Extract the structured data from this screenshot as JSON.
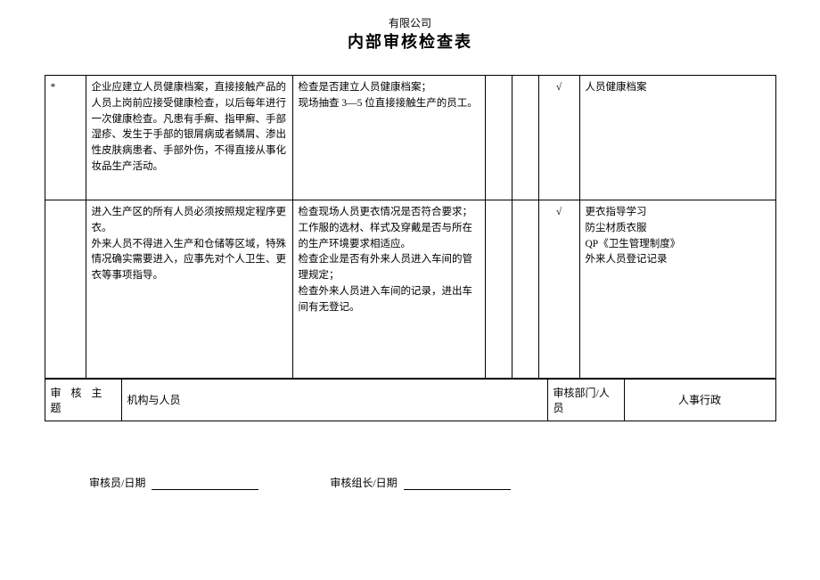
{
  "header": {
    "company": "有限公司",
    "title": "内部审核检查表"
  },
  "table": {
    "rows": [
      {
        "c0": "*",
        "c1": "企业应建立人员健康档案，直接接触产品的人员上岗前应接受健康检查，以后每年进行一次健康检查。凡患有手癣、指甲癣、手部湿疹、发生于手部的银屑病或者鳞屑、渗出性皮肤病患者、手部外伤，不得直接从事化妆品生产活动。",
        "c2": "检查是否建立人员健康档案；\n现场抽查 3—5 位直接接触生产的员工。",
        "c3": "",
        "c4": "",
        "c5": "√",
        "c6": "人员健康档案"
      },
      {
        "c0": "",
        "c1": "进入生产区的所有人员必须按照规定程序更衣。\n外来人员不得进入生产和仓储等区域，特殊情况确实需要进入，应事先对个人卫生、更衣等事项指导。",
        "c2": "检查现场人员更衣情况是否符合要求；工作服的选材、样式及穿戴是否与所在的生产环境要求相适应。\n检查企业是否有外来人员进入车间的管理规定；\n检查外来人员进入车间的记录，进出车间有无登记。",
        "c3": "",
        "c4": "",
        "c5": "√",
        "c6": "更衣指导学习\n防尘材质衣服\nQP《卫生管理制度》\n外来人员登记记录"
      }
    ]
  },
  "bottom": {
    "label_topic": "审 核 主 题",
    "topic_value": "机构与人员",
    "label_dept": "审核部门/人员",
    "dept_value": "人事行政"
  },
  "signature": {
    "auditor": "审核员/日期",
    "leader": "审核组长/日期"
  },
  "row_heights": {
    "r0": 140,
    "r1": 200
  },
  "bottom_cols": {
    "c0": 86,
    "c1": 478,
    "c2": 86,
    "c3": 170
  }
}
